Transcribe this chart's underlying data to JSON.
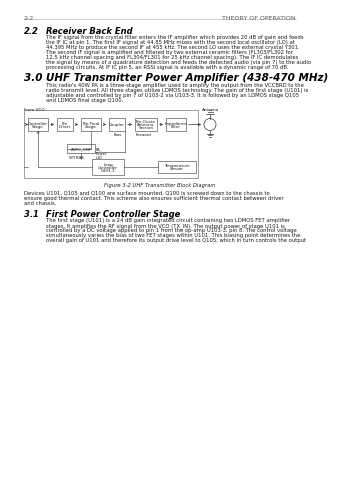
{
  "page_num": "2-2",
  "header_right": "THEORY OF OPERATION",
  "bg_color": "#ffffff",
  "section_2_2_num": "2.2",
  "section_2_2_heading": "Receiver Back End",
  "section_2_2_body": "The IF signal from the crystal filter enters the IF amplifier which provides 20 dB of gain and feeds\nthe IF IC at pin 1. The first IF signal at 44.85 MHz mixes with the second local oscillator (LO) at\n44.395 MHz to produce the second IF at 455 kHz. The second LO uses the external crystal Y301.\nThe second IF signal is amplified and filtered by two external ceramic filters (FL303/FL302 for\n12.5 kHz channel spacing and FL304/FL301 for 25 kHz channel spacing). The IF IC demodulates\nthe signal by means of a quadrature detection and feeds the detected audio (via pin 7) to the audio\nprocessing circuits. At IF IC pin 5, an RSSI signal is available with a dynamic range of 70 dB.",
  "section_3_0_num": "3.0",
  "section_3_0_heading": "UHF Transmitter Power Amplifier (438-470 MHz)",
  "section_3_0_body": "This radio's 40W PA is a three-stage amplifier used to amplify the output from the VCCBRD to the\nradio transmit level. All three stages utilize LDMOS technology. The gain of the first stage (U101) is\nadjustable and controlled by pin 7 of U103-2 via U103-3. It is followed by an LDMOS stage Q105\nand LDMOS final stage Q100.",
  "figure_label": "Figure 3-2 UHF Transmitter Block Diagram",
  "section_3_1_num": "3.1",
  "section_3_1_heading": "First Power Controller Stage",
  "section_3_1_body": "The first stage (U101) is a 24 dB gain integrated circuit containing two LDMOS FET amplifier\nstages. It amplifies the RF signal from the VCO (TX_IN). The output power of stage U101 is\ncontrolled by a DC voltage applied to pin 1 from the op-amp U103-3, pin 8. The control voltage\nsimultaneously varies the bias of two FET stages within U101. This biasing point determines the\noverall gain of U101 and therefore its output drive level to Q105, which in turn controls the output",
  "caption_text": "Devices U101, Q105 and Q100 are surface mounted. Q100 is screwed down to the chassis to\nensure good thermal contact. This scheme also ensures sufficient thermal contact between driver\nand chassis.",
  "text_color": "#1a1a1a",
  "header_color": "#555555",
  "title_color": "#000000",
  "box_color": "#333333",
  "box_bg": "#ffffff",
  "line_color": "#333333"
}
